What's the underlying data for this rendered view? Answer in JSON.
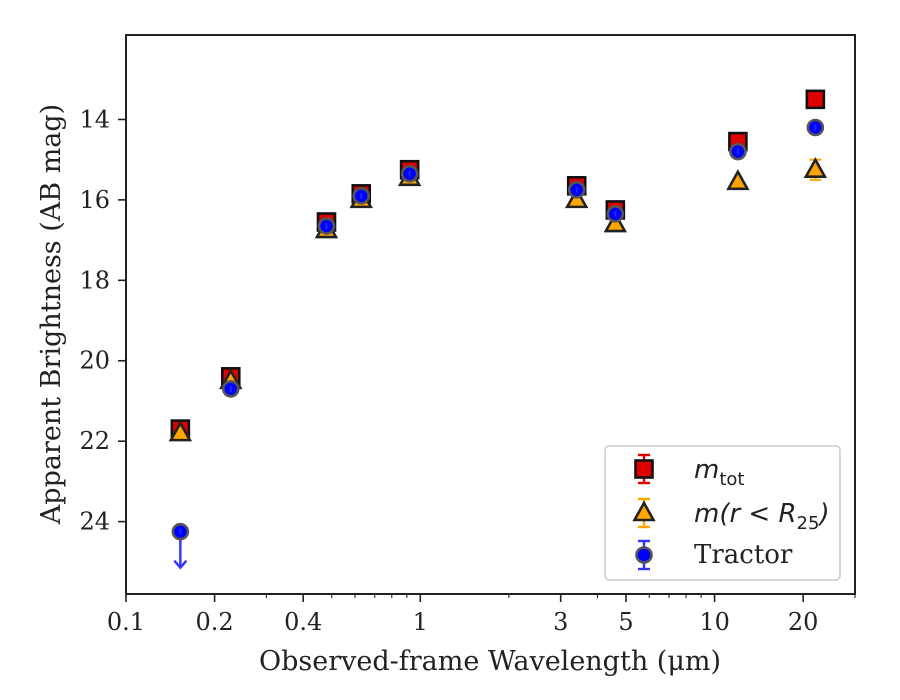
{
  "chart_data": {
    "type": "scatter",
    "xlabel": "Observed-frame Wavelength (μm)",
    "ylabel": "Apparent Brightness (AB mag)",
    "x_scale": "log",
    "xlim": [
      0.1,
      30
    ],
    "ylim": [
      25.8,
      11.9
    ],
    "y_inverted": true,
    "x_ticks": [
      0.1,
      0.2,
      0.4,
      1,
      3,
      5,
      10,
      20
    ],
    "x_tick_labels": [
      "0.1",
      "0.2",
      "0.4",
      "1",
      "3",
      "5",
      "10",
      "20"
    ],
    "y_ticks": [
      14,
      16,
      18,
      20,
      22,
      24
    ],
    "y_tick_labels": [
      "14",
      "16",
      "18",
      "20",
      "22",
      "24"
    ],
    "grid": false,
    "legend_position": "bottom-right",
    "series": [
      {
        "name": "m_tot",
        "marker": "square",
        "color": "#e00000",
        "points": [
          {
            "x": 0.153,
            "y": 21.7
          },
          {
            "x": 0.227,
            "y": 20.4
          },
          {
            "x": 0.48,
            "y": 16.55
          },
          {
            "x": 0.63,
            "y": 15.85
          },
          {
            "x": 0.92,
            "y": 15.25
          },
          {
            "x": 3.4,
            "y": 15.65
          },
          {
            "x": 4.6,
            "y": 16.25
          },
          {
            "x": 12.0,
            "y": 14.55
          },
          {
            "x": 22.0,
            "y": 13.5
          }
        ]
      },
      {
        "name": "m(r < R_25)",
        "marker": "triangle",
        "color": "#ffa500",
        "points": [
          {
            "x": 0.153,
            "y": 21.8
          },
          {
            "x": 0.227,
            "y": 20.5
          },
          {
            "x": 0.48,
            "y": 16.75
          },
          {
            "x": 0.63,
            "y": 16.0
          },
          {
            "x": 0.92,
            "y": 15.45
          },
          {
            "x": 3.4,
            "y": 16.0
          },
          {
            "x": 4.6,
            "y": 16.6
          },
          {
            "x": 12.0,
            "y": 15.55
          },
          {
            "x": 22.0,
            "y": 15.25,
            "yerr": 0.25
          }
        ]
      },
      {
        "name": "Tractor",
        "marker": "circle",
        "color": "#0000ff",
        "points": [
          {
            "x": 0.153,
            "y": 24.25,
            "upper_limit": true
          },
          {
            "x": 0.227,
            "y": 20.7
          },
          {
            "x": 0.48,
            "y": 16.65
          },
          {
            "x": 0.63,
            "y": 15.9
          },
          {
            "x": 0.92,
            "y": 15.35
          },
          {
            "x": 3.4,
            "y": 15.75
          },
          {
            "x": 4.6,
            "y": 16.35
          },
          {
            "x": 12.0,
            "y": 14.8
          },
          {
            "x": 22.0,
            "y": 14.2
          }
        ]
      }
    ],
    "legend": {
      "entries": [
        {
          "label_main": "m",
          "label_sub": "tot",
          "label_tail": ""
        },
        {
          "label_main": "m(r < R",
          "label_sub": "25",
          "label_tail": ")"
        },
        {
          "label_main": "Tractor",
          "label_sub": "",
          "label_tail": ""
        }
      ]
    }
  }
}
